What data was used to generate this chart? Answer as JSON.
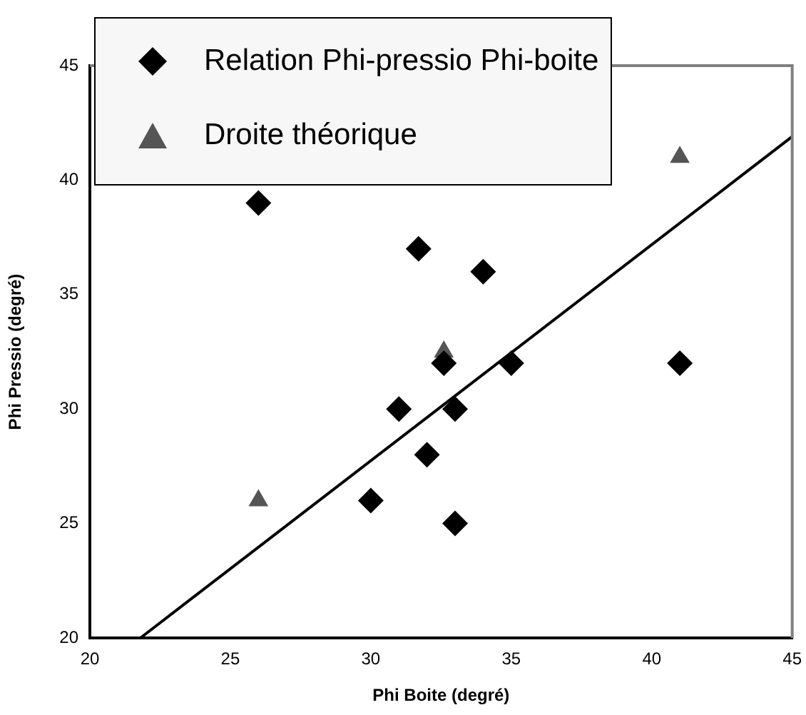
{
  "chart_data": {
    "type": "scatter",
    "xlabel": "Phi Boite (degré)",
    "ylabel": "Phi Pressio (degré)",
    "xlim": [
      20,
      45
    ],
    "ylim": [
      20,
      45
    ],
    "xticks": [
      20,
      25,
      30,
      35,
      40,
      45
    ],
    "yticks": [
      20,
      25,
      30,
      35,
      40,
      45
    ],
    "grid": false,
    "legend": "top left",
    "series": [
      {
        "name": "Relation Phi-pressio Phi-boite",
        "color": "#000000",
        "marker": "diamond",
        "x": [
          26,
          31.7,
          34,
          32.6,
          35,
          41,
          31,
          33,
          32,
          30,
          33
        ],
        "values": [
          39,
          37,
          36,
          32,
          32,
          32,
          30,
          30,
          28,
          26,
          25
        ]
      },
      {
        "name": "Droite théorique",
        "color": "#555555",
        "marker": "triangle",
        "x": [
          26,
          32.6,
          41
        ],
        "values": [
          26,
          32.5,
          41
        ]
      },
      {
        "type": "line",
        "color": "#000000",
        "marker": "none",
        "x": [
          21.8,
          45
        ],
        "values": [
          20,
          41.9
        ]
      }
    ]
  }
}
